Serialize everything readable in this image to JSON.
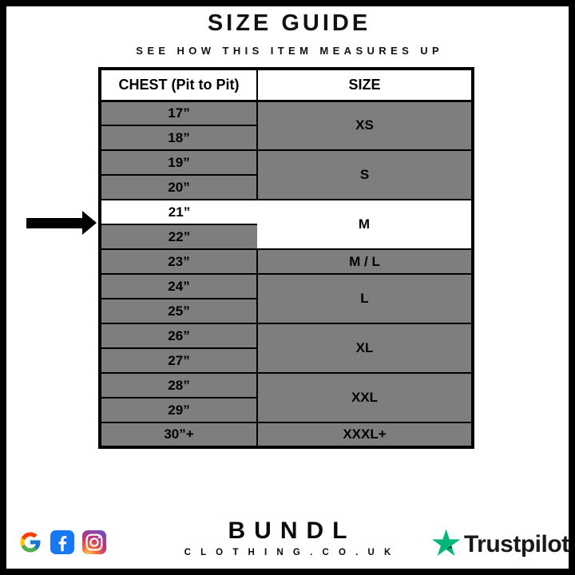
{
  "header": {
    "title": "SIZE GUIDE",
    "subtitle": "SEE HOW THIS ITEM MEASURES UP"
  },
  "table": {
    "columns": [
      "CHEST (Pit to Pit)",
      "SIZE"
    ],
    "groups": [
      {
        "size": "XS",
        "chest": [
          "17”",
          "18”"
        ],
        "highlighted": false
      },
      {
        "size": "S",
        "chest": [
          "19”",
          "20”"
        ],
        "highlighted": false
      },
      {
        "size": "M",
        "chest": [
          "21”",
          "22”"
        ],
        "highlighted": true,
        "highlighted_chest": "21”"
      },
      {
        "size": "M / L",
        "chest": [
          "23”"
        ],
        "highlighted": false
      },
      {
        "size": "L",
        "chest": [
          "24”",
          "25”"
        ],
        "highlighted": false
      },
      {
        "size": "XL",
        "chest": [
          "26”",
          "27”"
        ],
        "highlighted": false
      },
      {
        "size": "XXL",
        "chest": [
          "28”",
          "29”"
        ],
        "highlighted": false
      },
      {
        "size": "XXXL+",
        "chest": [
          "30”+"
        ],
        "highlighted": false
      }
    ]
  },
  "chart_data": {
    "type": "table",
    "title": "SIZE GUIDE",
    "subtitle": "SEE HOW THIS ITEM MEASURES UP",
    "columns": [
      "CHEST (Pit to Pit)",
      "SIZE"
    ],
    "rows": [
      [
        "17”",
        "XS"
      ],
      [
        "18”",
        "XS"
      ],
      [
        "19”",
        "S"
      ],
      [
        "20”",
        "S"
      ],
      [
        "21”",
        "M"
      ],
      [
        "22”",
        "M"
      ],
      [
        "23”",
        "M / L"
      ],
      [
        "24”",
        "L"
      ],
      [
        "25”",
        "L"
      ],
      [
        "26”",
        "XL"
      ],
      [
        "27”",
        "XL"
      ],
      [
        "28”",
        "XXL"
      ],
      [
        "29”",
        "XXL"
      ],
      [
        "30”+",
        "XXXL+"
      ]
    ],
    "highlighted_row": "21” / M (arrow marker, white highlight)"
  },
  "footer": {
    "brand_name": "BUNDL",
    "brand_domain": "C L O T H I N G . C O . U K",
    "trustpilot_label": "Trustpilot",
    "icons": [
      "google-icon",
      "facebook-icon",
      "instagram-icon",
      "trustpilot-star-icon"
    ]
  },
  "colors": {
    "row_gray": "#7e7e7e",
    "highlight_white": "#ffffff",
    "border_black": "#000000",
    "trustpilot_green": "#00b67a",
    "trustpilot_dark_green": "#005128",
    "facebook_blue": "#1877f2"
  }
}
